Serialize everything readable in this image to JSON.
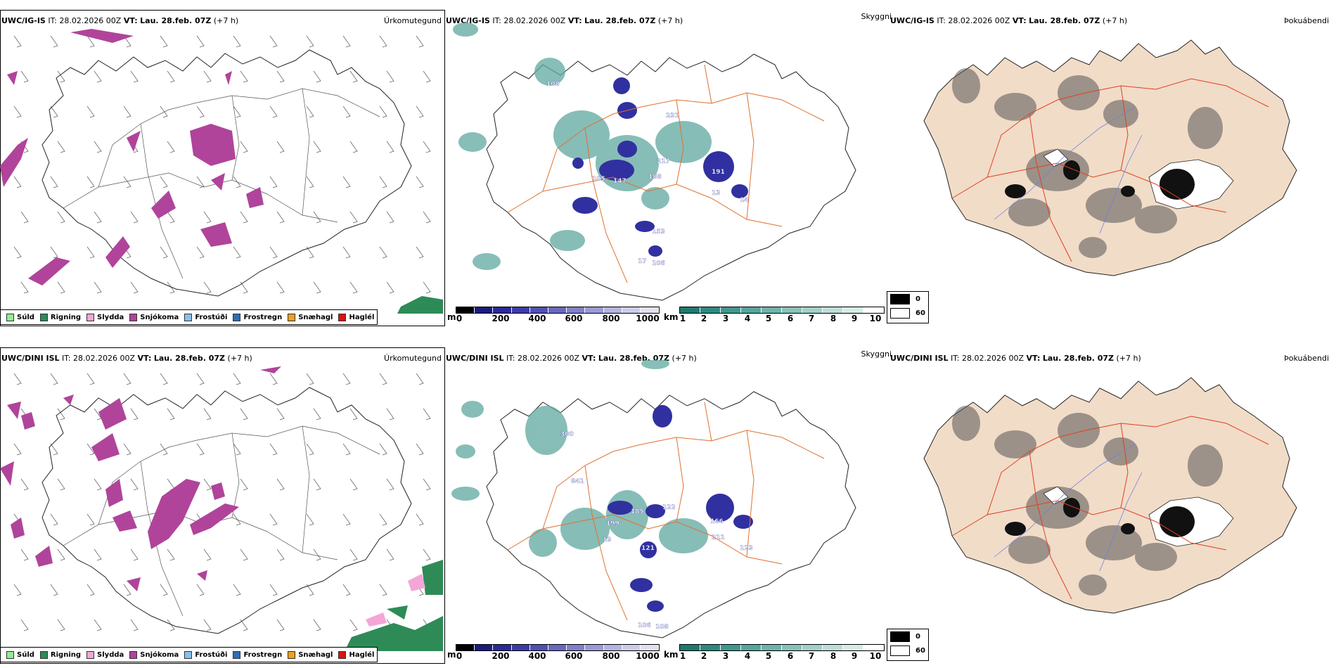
{
  "rows": [
    {
      "model": "UWC/IG-IS",
      "it_label": "IT:",
      "it_value": "28.02.2026 00Z",
      "vt_label": "VT:",
      "vt_value": "Lau. 28.feb. 07Z",
      "lead": "(+7 h)"
    },
    {
      "model": "UWC/DINI ISL",
      "it_label": "IT:",
      "it_value": "28.02.2026 00Z",
      "vt_label": "VT:",
      "vt_value": "Lau. 28.feb. 07Z",
      "lead": "(+7 h)"
    }
  ],
  "panels": {
    "precip_title": "Úrkomutegund",
    "cloud_title": "Skyggni",
    "fog_title": "Þokuábendi"
  },
  "precip_legend": [
    {
      "label": "Súld",
      "color": "#90ee90"
    },
    {
      "label": "Rigning",
      "color": "#2e8b57"
    },
    {
      "label": "Slydda",
      "color": "#f4a6d7"
    },
    {
      "label": "Snjókoma",
      "color": "#b0449a"
    },
    {
      "label": "Frostúði",
      "color": "#87c1ee"
    },
    {
      "label": "Frostregn",
      "color": "#2f6db5"
    },
    {
      "label": "Snæhagl",
      "color": "#f0a020"
    },
    {
      "label": "Haglél",
      "color": "#dd1111"
    }
  ],
  "cloudbase_scale": {
    "unit": "m",
    "ticks": [
      "0",
      "200",
      "400",
      "600",
      "800",
      "1000"
    ],
    "colors": [
      "#000000",
      "#1a1a80",
      "#2a2a98",
      "#3c3ca8",
      "#5050b4",
      "#6868c0",
      "#8080cc",
      "#9a9ad6",
      "#b4b4e0",
      "#ccccea",
      "#e0e0f2"
    ]
  },
  "visibility_scale": {
    "unit": "km",
    "ticks": [
      "1",
      "2",
      "3",
      "4",
      "5",
      "6",
      "7",
      "8",
      "9",
      "10"
    ],
    "colors": [
      "#1f7a70",
      "#2d8a80",
      "#3f988e",
      "#56a69c",
      "#6eb4aa",
      "#88c2b8",
      "#a2d0c8",
      "#bcded6",
      "#d6ece6",
      "#ffffff"
    ]
  },
  "fog_legend": [
    {
      "label": "0",
      "color": "#000000"
    },
    {
      "label": "60",
      "color": "#ffffff"
    }
  ],
  "cloud_labels_top": [
    "108",
    "231",
    "217",
    "188",
    "147",
    "105",
    "191",
    "13",
    "14",
    "153",
    "106",
    "17"
  ],
  "cloud_labels_bottom": [
    "300",
    "841",
    "185",
    "122",
    "199",
    "19",
    "166",
    "211",
    "121",
    "123",
    "106",
    "108"
  ]
}
